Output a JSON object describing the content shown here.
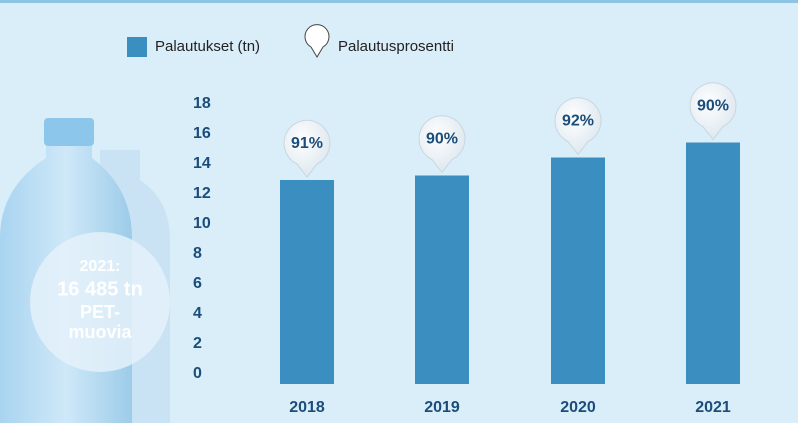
{
  "chart_data": {
    "type": "bar",
    "categories": [
      "2018",
      "2019",
      "2020",
      "2021"
    ],
    "series": [
      {
        "name": "Palautukset (tn)",
        "color": "#3a8fc0",
        "values": [
          13.2,
          13.5,
          14.7,
          15.7
        ]
      },
      {
        "name": "Palautusprosentti",
        "color": "#ffffff",
        "values": [
          91,
          90,
          92,
          90
        ],
        "value_labels": [
          "91%",
          "90%",
          "92%",
          "90%"
        ]
      }
    ],
    "ylim": [
      0,
      18
    ],
    "yticks": [
      0,
      2,
      4,
      6,
      8,
      10,
      12,
      14,
      16,
      18
    ],
    "grid": false,
    "annotation": [
      "2021:",
      "16 485 tn",
      "PET-",
      "muovia"
    ]
  }
}
